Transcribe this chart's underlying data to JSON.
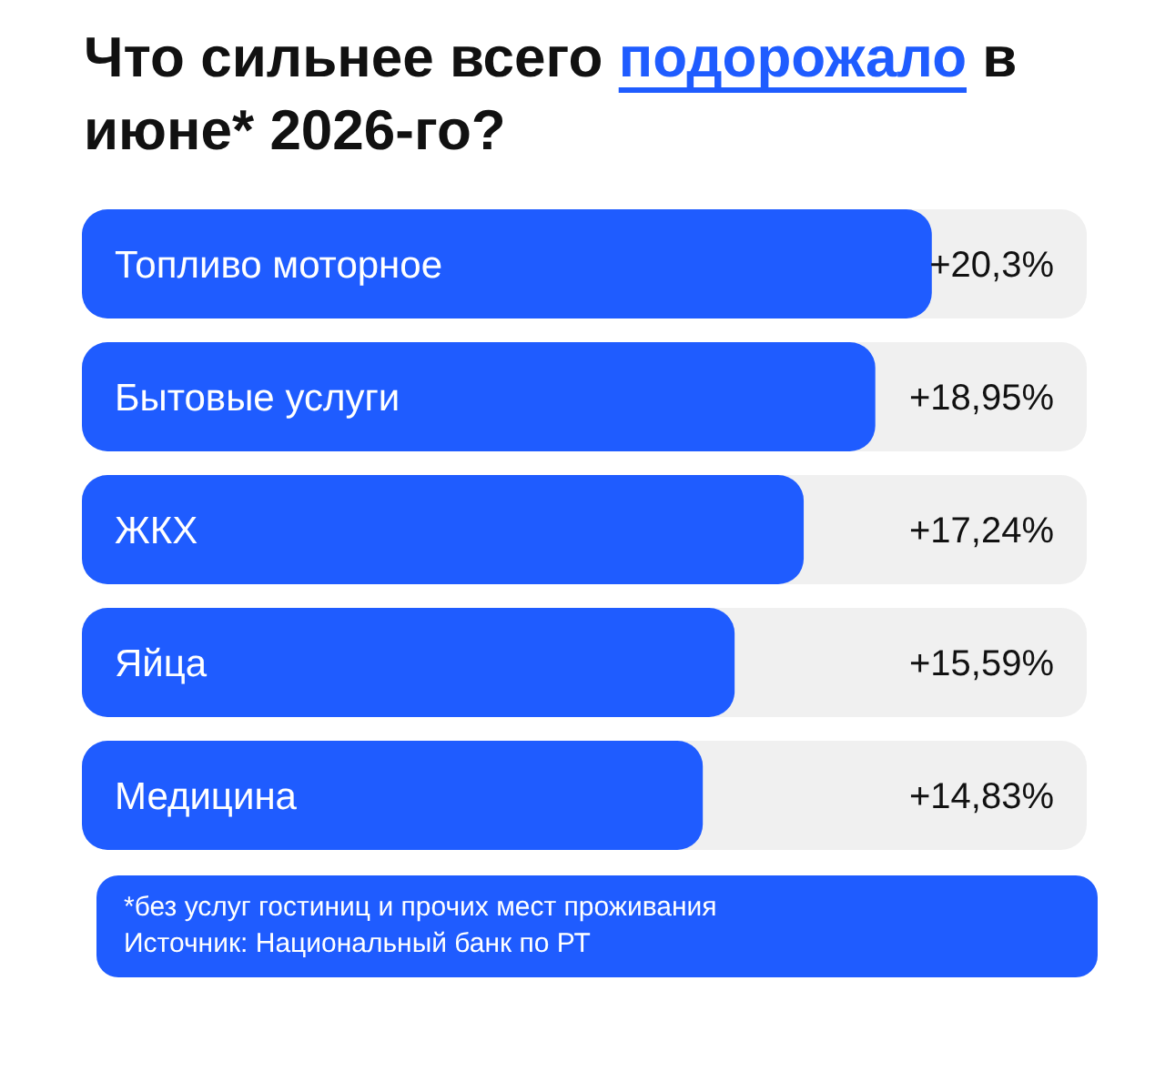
{
  "chart_data": {
    "type": "bar",
    "orientation": "horizontal",
    "title": "Что сильнее всего подорожало в июне* 2026-го?",
    "categories": [
      "Топливо моторное",
      "Бытовые услуги",
      "ЖКХ",
      "Яйца",
      "Медицина"
    ],
    "values": [
      20.3,
      18.95,
      17.24,
      15.59,
      14.83
    ],
    "value_labels": [
      "+20,3%",
      "+18,95%",
      "+17,24%",
      "+15,59%",
      "+14,83%"
    ],
    "color": "#1f5cff",
    "annotations": [
      "*без услуг гостиниц и прочих мест проживания",
      "Источник: Национальный банк по РТ"
    ]
  }
}
